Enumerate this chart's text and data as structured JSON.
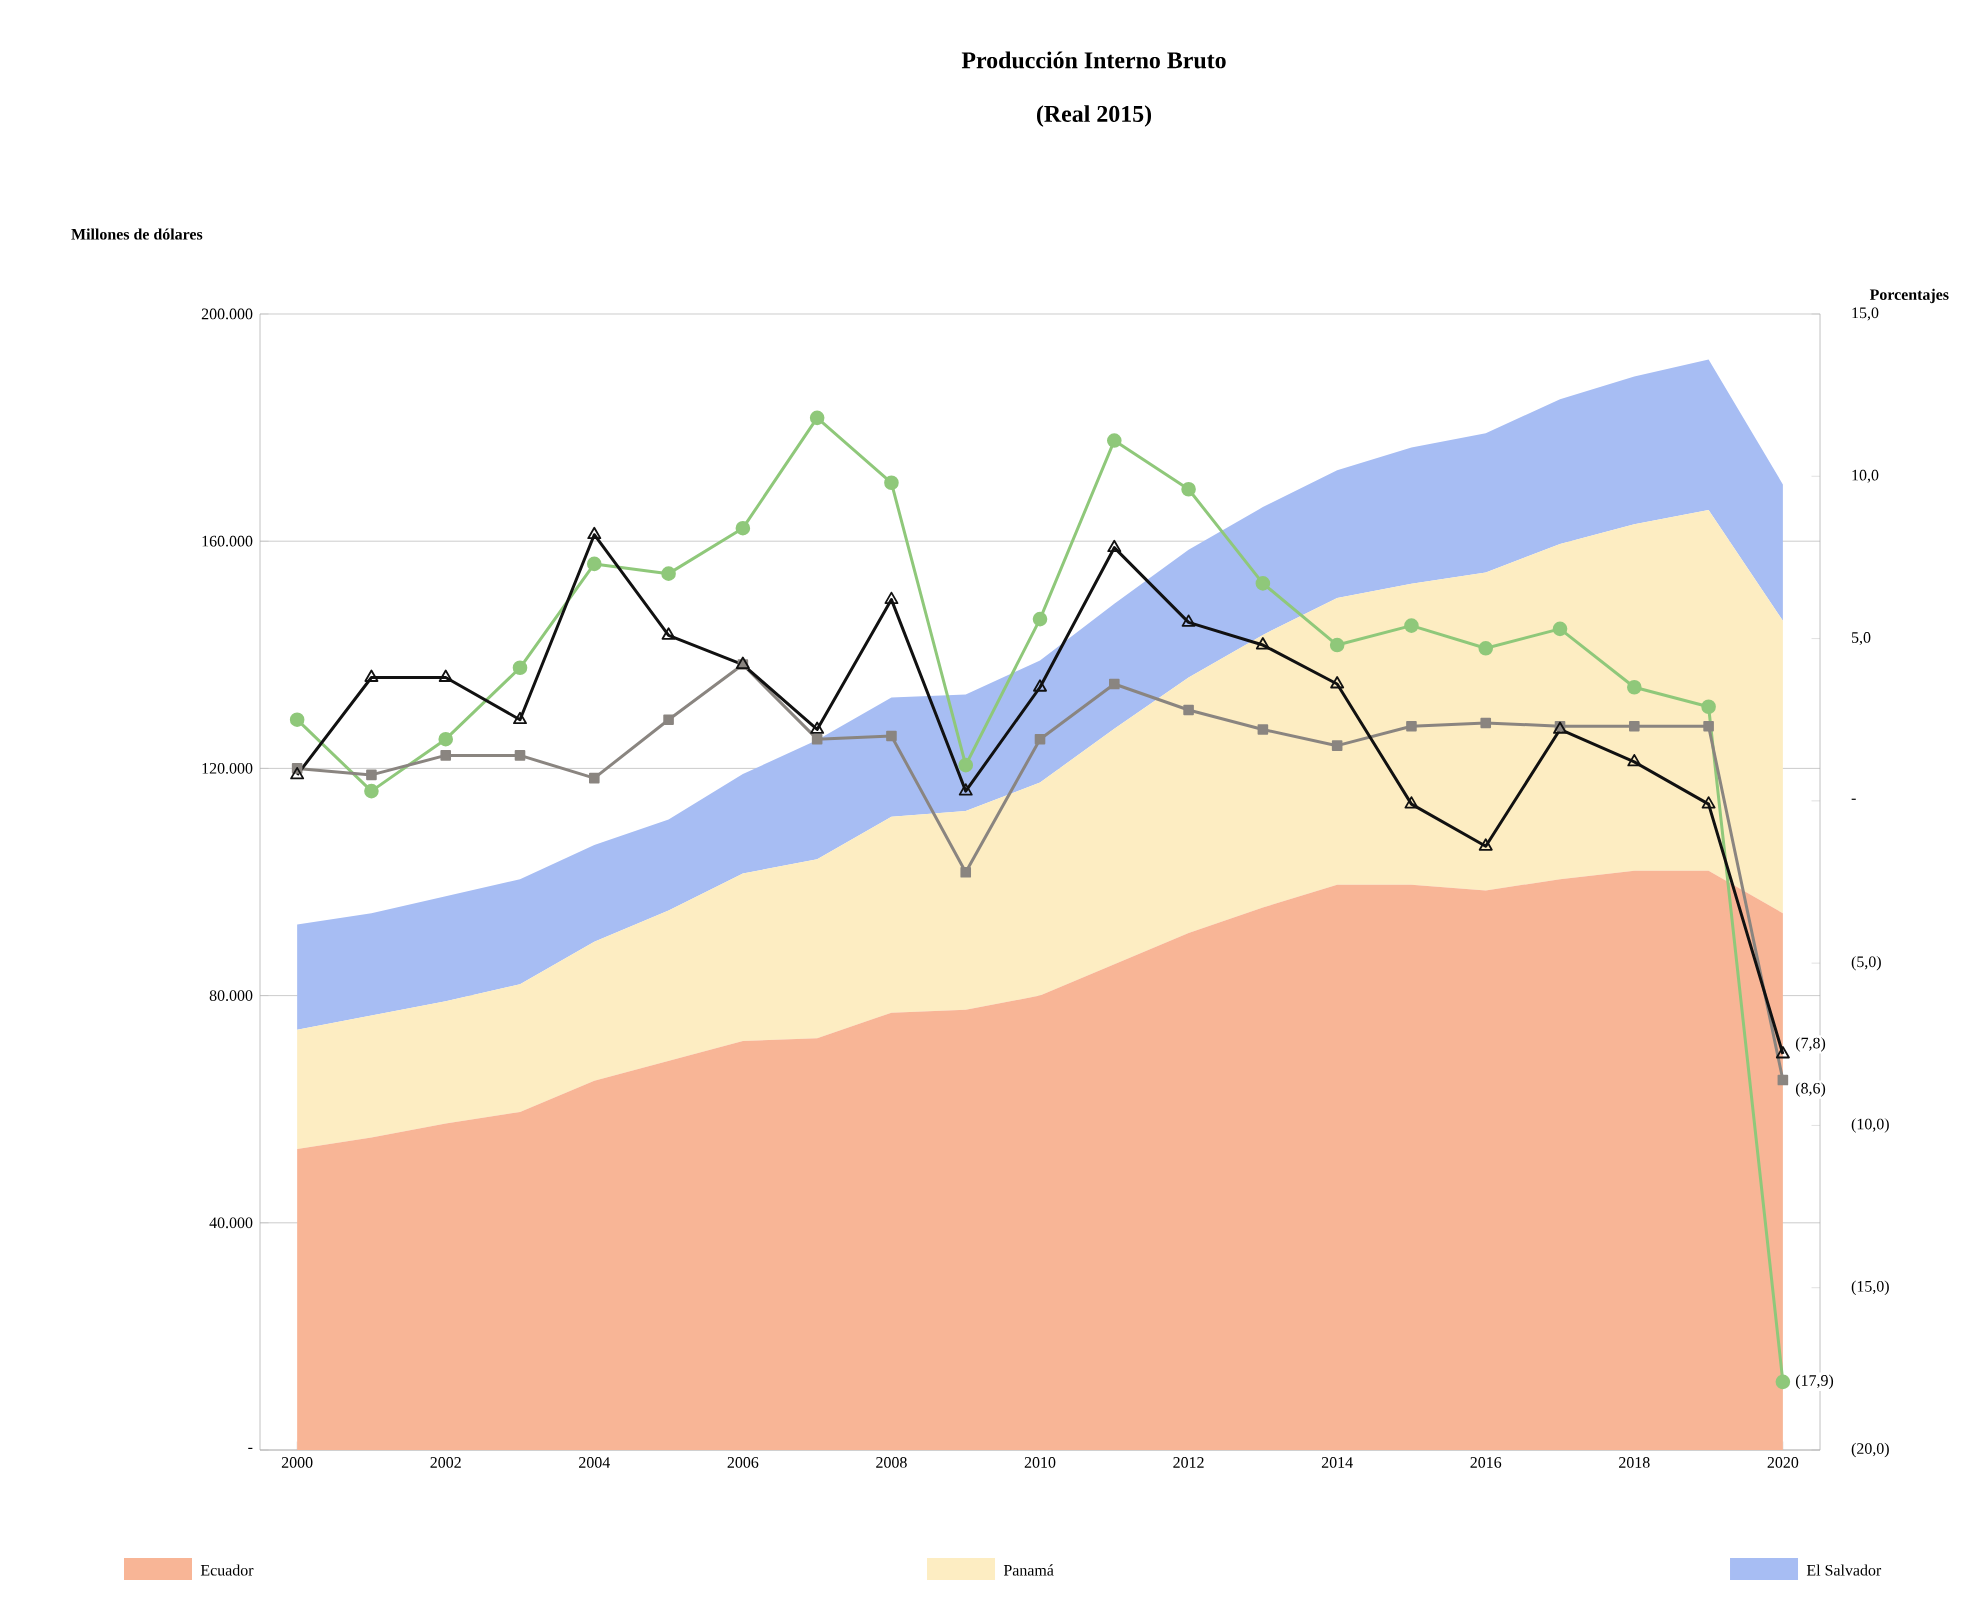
{
  "chart_data": {
    "type": "area",
    "title": "Producción Interno Bruto",
    "subtitle": "(Real 2015)",
    "ylabel": "Millones de dólares",
    "y2label": "Porcentajes",
    "x": [
      2000,
      2001,
      2002,
      2003,
      2004,
      2005,
      2006,
      2007,
      2008,
      2009,
      2010,
      2011,
      2012,
      2013,
      2014,
      2015,
      2016,
      2017,
      2018,
      2019,
      2020
    ],
    "stacked": true,
    "grid": "y",
    "legend": "bottom",
    "xlim": [
      1999.5,
      2020.5
    ],
    "xticks": [
      2000,
      2002,
      2004,
      2006,
      2008,
      2010,
      2012,
      2014,
      2016,
      2018,
      2020
    ],
    "ylim": [
      0,
      200000
    ],
    "yticks": [
      {
        "value": 0,
        "label": "-"
      },
      {
        "value": 40000,
        "label": "40.000"
      },
      {
        "value": 80000,
        "label": "80.000"
      },
      {
        "value": 120000,
        "label": "120.000"
      },
      {
        "value": 160000,
        "label": "160.000"
      },
      {
        "value": 200000,
        "label": "200.000"
      }
    ],
    "y2lim": [
      -20,
      15
    ],
    "y2ticks": [
      {
        "value": -20,
        "label": "(20,0)"
      },
      {
        "value": -15,
        "label": "(15,0)"
      },
      {
        "value": -10,
        "label": "(10,0)"
      },
      {
        "value": -5,
        "label": "(5,0)"
      },
      {
        "value": 0,
        "label": "-"
      },
      {
        "value": 5,
        "label": "5,0"
      },
      {
        "value": 10,
        "label": "10,0"
      },
      {
        "value": 15,
        "label": "15,0"
      }
    ],
    "series": [
      {
        "name": "Ecuador",
        "color": "#f8b596",
        "values": [
          53000,
          55000,
          57500,
          59500,
          65000,
          68500,
          72000,
          72500,
          77000,
          77500,
          80000,
          85500,
          91000,
          95500,
          99500,
          99500,
          98500,
          100500,
          102000,
          102000,
          94500
        ]
      },
      {
        "name": "Panamá",
        "color": "#fdedc2",
        "values": [
          21000,
          21500,
          21500,
          22500,
          24500,
          26500,
          29500,
          31500,
          34500,
          35000,
          37500,
          41500,
          45000,
          48000,
          50500,
          53000,
          56000,
          59000,
          61000,
          63500,
          51500
        ]
      },
      {
        "name": "El Salvador",
        "color": "#a7bdf3",
        "values": [
          18500,
          18000,
          18500,
          18500,
          17000,
          16000,
          17500,
          21000,
          21000,
          20500,
          21500,
          22000,
          22500,
          22500,
          22500,
          24000,
          24500,
          25500,
          26000,
          26500,
          24000
        ]
      },
      {
        "type": "line",
        "axis": "y2",
        "marker": "circle",
        "color": "#8fc87a",
        "values": [
          2.5,
          0.3,
          1.9,
          4.1,
          7.3,
          7.0,
          8.4,
          11.8,
          9.8,
          1.1,
          5.6,
          11.1,
          9.6,
          6.7,
          4.8,
          5.4,
          4.7,
          5.3,
          3.5,
          2.9,
          -17.9
        ],
        "value_labels": [
          null,
          null,
          null,
          null,
          null,
          null,
          null,
          null,
          null,
          null,
          null,
          null,
          null,
          null,
          null,
          null,
          null,
          null,
          null,
          null,
          "(17,9)"
        ]
      },
      {
        "type": "line",
        "axis": "y2",
        "marker": "square",
        "color": "#8a8580",
        "values": [
          1.0,
          0.8,
          1.4,
          1.4,
          0.7,
          2.5,
          4.2,
          1.9,
          2.0,
          -2.2,
          1.9,
          3.6,
          2.8,
          2.2,
          1.7,
          2.3,
          2.4,
          2.3,
          2.3,
          2.3,
          -8.6
        ],
        "value_labels": [
          null,
          null,
          null,
          null,
          null,
          null,
          null,
          null,
          null,
          null,
          null,
          null,
          null,
          null,
          null,
          null,
          null,
          null,
          null,
          null,
          "(8,6)"
        ]
      },
      {
        "type": "line",
        "axis": "y2",
        "marker": "triangle",
        "color": "#111111",
        "values": [
          0.8,
          3.8,
          3.8,
          2.5,
          8.2,
          5.1,
          4.2,
          2.2,
          6.2,
          0.3,
          3.5,
          7.8,
          5.5,
          4.8,
          3.6,
          -0.1,
          -1.4,
          2.2,
          1.2,
          -0.1,
          -7.8
        ],
        "value_labels": [
          null,
          null,
          null,
          null,
          null,
          null,
          null,
          null,
          null,
          null,
          null,
          null,
          null,
          null,
          null,
          null,
          null,
          null,
          null,
          null,
          "(7,8)"
        ]
      }
    ]
  }
}
